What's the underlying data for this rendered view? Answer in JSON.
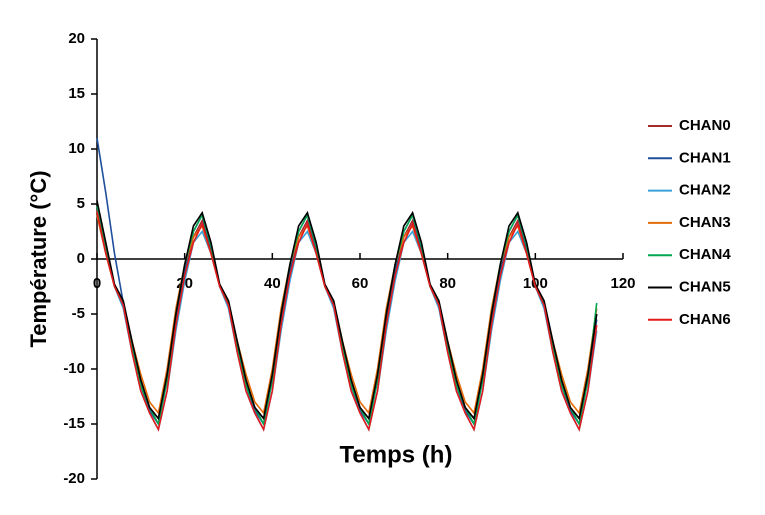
{
  "chart_data": {
    "type": "line",
    "x_label": "Temps (h)",
    "y_label": "Température (°C)",
    "x": [
      0,
      2,
      4,
      6,
      8,
      10,
      12,
      14,
      16,
      18,
      20,
      22,
      24,
      26,
      28,
      30,
      32,
      34,
      36,
      38,
      40,
      42,
      44,
      46,
      48,
      50,
      52,
      54,
      56,
      58,
      60,
      62,
      64,
      66,
      68,
      70,
      72,
      74,
      76,
      78,
      80,
      82,
      84,
      86,
      88,
      90,
      92,
      94,
      96,
      98,
      100,
      102,
      104,
      106,
      108,
      110,
      112,
      114
    ],
    "xlim": [
      0,
      120
    ],
    "xticks": [
      0,
      20,
      40,
      60,
      80,
      100,
      120
    ],
    "ylim": [
      -20,
      20
    ],
    "yticks": [
      -20,
      -15,
      -10,
      -5,
      0,
      5,
      10,
      15,
      20
    ],
    "series": [
      {
        "name": "CHAN0",
        "color": "#a52a2a",
        "values": [
          4.5,
          0.8,
          -2.5,
          -4,
          -8,
          -11,
          -13.5,
          -14.5,
          -10.5,
          -5,
          -1,
          2,
          3.5,
          0.8,
          -2.5,
          -4,
          -8,
          -11,
          -13.5,
          -14.5,
          -10.5,
          -5,
          -1,
          2,
          3.5,
          0.8,
          -2.5,
          -4,
          -8,
          -11,
          -13.5,
          -14.5,
          -10.5,
          -5,
          -1,
          2,
          3.5,
          0.8,
          -2.5,
          -4,
          -8,
          -11,
          -13.5,
          -14.5,
          -10.5,
          -5,
          -1,
          2,
          3.5,
          0.8,
          -2.5,
          -4,
          -8,
          -11,
          -13.5,
          -14.5,
          -10.5,
          -5
        ]
      },
      {
        "name": "CHAN1",
        "color": "#1f4e9b",
        "values": [
          11,
          6,
          0.5,
          -4,
          -8,
          -11.5,
          -13.8,
          -15,
          -11,
          -5.5,
          -1,
          2.5,
          4,
          1,
          -2.5,
          -4,
          -8,
          -11.5,
          -13.8,
          -15,
          -11,
          -5.5,
          -1,
          2.5,
          4,
          1,
          -2.5,
          -4,
          -8,
          -11.5,
          -13.8,
          -15,
          -11,
          -5.5,
          -1,
          2.5,
          4,
          1,
          -2.5,
          -4,
          -8,
          -11.5,
          -13.8,
          -15,
          -11,
          -5.5,
          -1,
          2.5,
          4,
          1,
          -2.5,
          -4,
          -8,
          -11.5,
          -13.8,
          -15,
          -11,
          -5.5
        ]
      },
      {
        "name": "CHAN2",
        "color": "#3aa0d8",
        "values": [
          4,
          0.5,
          -2.5,
          -4.5,
          -8.5,
          -12,
          -14,
          -15.5,
          -12,
          -6.5,
          -2,
          1.5,
          2.5,
          0.5,
          -2.5,
          -4.5,
          -8.5,
          -12,
          -14,
          -15.5,
          -12,
          -6.5,
          -2,
          1.5,
          2.5,
          0.5,
          -2.5,
          -4.5,
          -8.5,
          -12,
          -14,
          -15.5,
          -12,
          -6.5,
          -2,
          1.5,
          2.5,
          0.5,
          -2.5,
          -4.5,
          -8.5,
          -12,
          -14,
          -15.5,
          -12,
          -6.5,
          -2,
          1.5,
          2.5,
          0.5,
          -2.5,
          -4.5,
          -8.5,
          -12,
          -14,
          -15.5,
          -12,
          -6.5
        ]
      },
      {
        "name": "CHAN3",
        "color": "#e36c09",
        "values": [
          4,
          0.5,
          -2.5,
          -4,
          -7.5,
          -10.5,
          -13,
          -14,
          -10,
          -4.5,
          -0.5,
          2,
          3,
          0.5,
          -2.5,
          -4,
          -7.5,
          -10.5,
          -13,
          -14,
          -10,
          -4.5,
          -0.5,
          2,
          3,
          0.5,
          -2.5,
          -4,
          -7.5,
          -10.5,
          -13,
          -14,
          -10,
          -4.5,
          -0.5,
          2,
          3,
          0.5,
          -2.5,
          -4,
          -7.5,
          -10.5,
          -13,
          -14,
          -10,
          -4.5,
          -0.5,
          2,
          3,
          0.5,
          -2.5,
          -4,
          -7.5,
          -10.5,
          -13,
          -14,
          -10,
          -4.5
        ]
      },
      {
        "name": "CHAN4",
        "color": "#00a651",
        "values": [
          4.8,
          1.2,
          -2.5,
          -4,
          -8,
          -11.5,
          -13.5,
          -15,
          -11,
          -5,
          -0.5,
          2.5,
          4,
          1.2,
          -2.5,
          -4,
          -8,
          -11.5,
          -13.5,
          -15,
          -11,
          -5,
          -0.5,
          2.5,
          4,
          1.2,
          -2.5,
          -4,
          -8,
          -11.5,
          -13.5,
          -15,
          -11,
          -5,
          -0.5,
          2.5,
          4,
          1.2,
          -2.5,
          -4,
          -8,
          -11.5,
          -13.5,
          -15,
          -11,
          -5,
          -0.5,
          2.5,
          4,
          1.2,
          -2.5,
          -4,
          -8,
          -11.5,
          -13.5,
          -15,
          -11,
          -4
        ]
      },
      {
        "name": "CHAN5",
        "color": "#000000",
        "values": [
          5.3,
          1.5,
          -2.3,
          -3.8,
          -7.5,
          -11,
          -13.5,
          -14.5,
          -10.5,
          -5,
          -0.5,
          3,
          4.2,
          1.5,
          -2.3,
          -3.8,
          -7.5,
          -11,
          -13.5,
          -14.5,
          -10.5,
          -5,
          -0.5,
          3,
          4.2,
          1.5,
          -2.3,
          -3.8,
          -7.5,
          -11,
          -13.5,
          -14.5,
          -10.5,
          -5,
          -0.5,
          3,
          4.2,
          1.5,
          -2.3,
          -3.8,
          -7.5,
          -11,
          -13.5,
          -14.5,
          -10.5,
          -5,
          -0.5,
          3,
          4.2,
          1.5,
          -2.3,
          -3.8,
          -7.5,
          -11,
          -13.5,
          -14.5,
          -10.5,
          -5
        ]
      },
      {
        "name": "CHAN6",
        "color": "#e31a1c",
        "values": [
          4.3,
          0.5,
          -2.5,
          -4.2,
          -8.5,
          -12,
          -14,
          -15.5,
          -12,
          -6,
          -1.5,
          1.5,
          3.2,
          0.5,
          -2.5,
          -4.2,
          -8.5,
          -12,
          -14,
          -15.5,
          -12,
          -6,
          -1.5,
          1.5,
          3.2,
          0.5,
          -2.5,
          -4.2,
          -8.5,
          -12,
          -14,
          -15.5,
          -12,
          -6,
          -1.5,
          1.5,
          3.2,
          0.5,
          -2.5,
          -4.2,
          -8.5,
          -12,
          -14,
          -15.5,
          -12,
          -6,
          -1.5,
          1.5,
          3.2,
          0.5,
          -2.5,
          -4.2,
          -8.5,
          -12,
          -14,
          -15.5,
          -12,
          -6
        ]
      }
    ]
  }
}
